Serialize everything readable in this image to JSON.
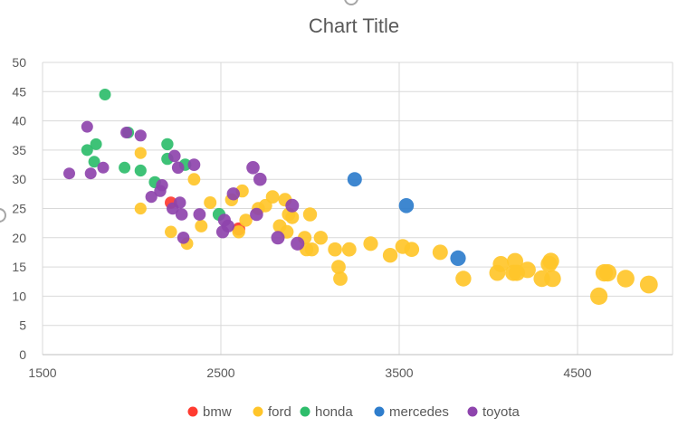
{
  "chart_data": {
    "type": "scatter",
    "title": "Chart Title",
    "xlabel": "",
    "ylabel": "",
    "xlim": [
      1500,
      4700
    ],
    "ylim": [
      0,
      50
    ],
    "x_ticks": [
      1500,
      2500,
      3500,
      4500
    ],
    "y_ticks": [
      0,
      5,
      10,
      15,
      20,
      25,
      30,
      35,
      40,
      45,
      50
    ],
    "grid": true,
    "legend_position": "bottom",
    "series": [
      {
        "name": "bmw",
        "color": "#ff3b30",
        "points": [
          [
            2220,
            26
          ],
          [
            2600,
            21.5
          ]
        ]
      },
      {
        "name": "ford",
        "color": "#ffc52a",
        "points": [
          [
            2050,
            34.5
          ],
          [
            2050,
            25
          ],
          [
            2220,
            21
          ],
          [
            2310,
            19
          ],
          [
            2350,
            30
          ],
          [
            2390,
            22
          ],
          [
            2440,
            26
          ],
          [
            2560,
            26.5
          ],
          [
            2600,
            21
          ],
          [
            2620,
            28
          ],
          [
            2640,
            23
          ],
          [
            2710,
            25
          ],
          [
            2750,
            25.5
          ],
          [
            2790,
            27
          ],
          [
            2830,
            22
          ],
          [
            2860,
            26.5
          ],
          [
            2870,
            21
          ],
          [
            2880,
            24
          ],
          [
            2900,
            23.5
          ],
          [
            2970,
            20
          ],
          [
            2980,
            18
          ],
          [
            3000,
            24
          ],
          [
            3010,
            18
          ],
          [
            3060,
            20
          ],
          [
            3140,
            18
          ],
          [
            3160,
            15
          ],
          [
            3170,
            13
          ],
          [
            3220,
            18
          ],
          [
            3340,
            19
          ],
          [
            3450,
            17
          ],
          [
            3520,
            18.5
          ],
          [
            3570,
            18
          ],
          [
            3730,
            17.5
          ],
          [
            3860,
            13
          ],
          [
            4050,
            14
          ],
          [
            4070,
            15.5
          ],
          [
            4140,
            14
          ],
          [
            4150,
            16
          ],
          [
            4160,
            14
          ],
          [
            4220,
            14.5
          ],
          [
            4300,
            13
          ],
          [
            4340,
            15.5
          ],
          [
            4350,
            16
          ],
          [
            4360,
            13
          ],
          [
            4620,
            10
          ],
          [
            4650,
            14
          ],
          [
            4670,
            14
          ],
          [
            4770,
            13
          ],
          [
            4900,
            12
          ]
        ]
      },
      {
        "name": "honda",
        "color": "#2ebd6b",
        "points": [
          [
            1750,
            35
          ],
          [
            1790,
            33
          ],
          [
            1800,
            36
          ],
          [
            1850,
            44.5
          ],
          [
            1960,
            32
          ],
          [
            1980,
            38
          ],
          [
            2050,
            31.5
          ],
          [
            2130,
            29.5
          ],
          [
            2200,
            36
          ],
          [
            2200,
            33.5
          ],
          [
            2300,
            32.5
          ],
          [
            2490,
            24
          ]
        ]
      },
      {
        "name": "mercedes",
        "color": "#2e7dcc",
        "points": [
          [
            3250,
            30
          ],
          [
            3540,
            25.5
          ],
          [
            3830,
            16.5
          ]
        ]
      },
      {
        "name": "toyota",
        "color": "#8e44ad",
        "points": [
          [
            1650,
            31
          ],
          [
            1750,
            39
          ],
          [
            1770,
            31
          ],
          [
            1840,
            32
          ],
          [
            1970,
            38
          ],
          [
            2050,
            37.5
          ],
          [
            2110,
            27
          ],
          [
            2160,
            28
          ],
          [
            2170,
            29
          ],
          [
            2230,
            25
          ],
          [
            2240,
            34
          ],
          [
            2260,
            32
          ],
          [
            2270,
            26
          ],
          [
            2280,
            24
          ],
          [
            2290,
            20
          ],
          [
            2350,
            32.5
          ],
          [
            2380,
            24
          ],
          [
            2510,
            21
          ],
          [
            2520,
            23
          ],
          [
            2540,
            22
          ],
          [
            2570,
            27.5
          ],
          [
            2680,
            32
          ],
          [
            2700,
            24
          ],
          [
            2720,
            30
          ],
          [
            2820,
            20
          ],
          [
            2900,
            25.5
          ],
          [
            2930,
            19
          ]
        ]
      }
    ]
  }
}
